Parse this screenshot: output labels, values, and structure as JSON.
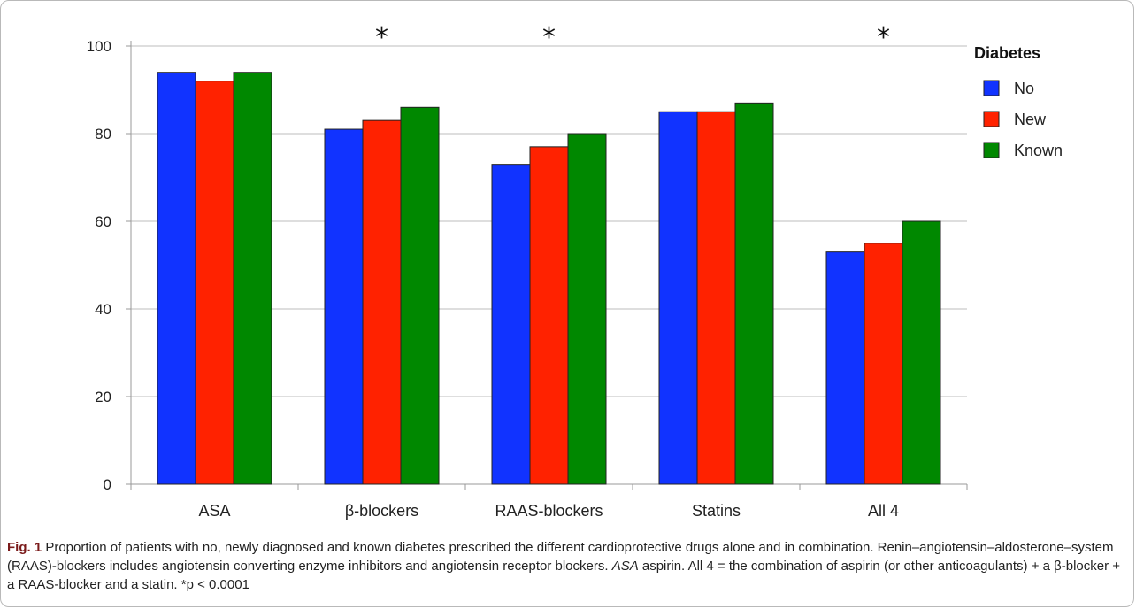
{
  "chart_data": {
    "type": "bar",
    "title": "",
    "xlabel": "",
    "ylabel": "",
    "ylim": [
      0,
      100
    ],
    "yticks": [
      0,
      20,
      40,
      60,
      80,
      100
    ],
    "grid": true,
    "legend_position": "right",
    "legend_title": "Diabetes",
    "categories": [
      "ASA",
      "β-blockers",
      "RAAS-blockers",
      "Statins",
      "All 4"
    ],
    "significance": [
      "",
      "*",
      "*",
      "",
      "*"
    ],
    "series": [
      {
        "name": "No",
        "color": "#1133ff",
        "values": [
          94,
          81,
          73,
          85,
          53
        ]
      },
      {
        "name": "New",
        "color": "#ff2200",
        "values": [
          92,
          83,
          77,
          85,
          55
        ]
      },
      {
        "name": "Known",
        "color": "#008800",
        "values": [
          94,
          86,
          80,
          87,
          60
        ]
      }
    ]
  },
  "caption": {
    "fig_label": "Fig. 1",
    "text_1": " Proportion of patients with no, newly diagnosed and known diabetes prescribed the different cardioprotective drugs alone and in combination. Renin–angiotensin–aldosterone–system (RAAS)-blockers includes angiotensin converting enzyme inhibitors and angiotensin receptor blockers. ",
    "asa_abbrev": "ASA",
    "text_2": " aspirin. All 4 = the combination of aspirin (or other anticoagulants) + a β-blocker + a RAAS-blocker and a statin. *p < 0.0001"
  }
}
